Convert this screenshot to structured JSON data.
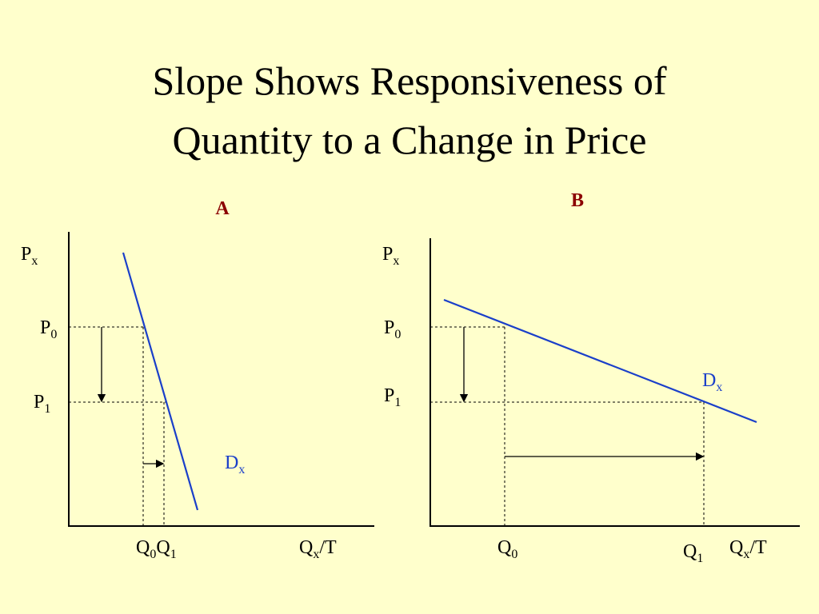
{
  "title": [
    "Slope Shows Responsiveness of",
    "Quantity to a Change in Price"
  ],
  "panels": [
    {
      "label": "A",
      "y_axis": {
        "base": "P",
        "sub": "x"
      },
      "x_axis": {
        "base": "Q",
        "sub": "x",
        "suffix": "/T"
      },
      "p0": {
        "base": "P",
        "sub": "0"
      },
      "p1": {
        "base": "P",
        "sub": "1"
      },
      "q0": {
        "base": "Q",
        "sub": "0"
      },
      "q1": {
        "base": "Q",
        "sub": "1"
      },
      "curve": {
        "base": "D",
        "sub": "x"
      }
    },
    {
      "label": "B",
      "y_axis": {
        "base": "P",
        "sub": "x"
      },
      "x_axis": {
        "base": "Q",
        "sub": "x",
        "suffix": "/T"
      },
      "p0": {
        "base": "P",
        "sub": "0"
      },
      "p1": {
        "base": "P",
        "sub": "1"
      },
      "q0": {
        "base": "Q",
        "sub": "0"
      },
      "q1": {
        "base": "Q",
        "sub": "1"
      },
      "curve": {
        "base": "D",
        "sub": "x"
      }
    }
  ]
}
